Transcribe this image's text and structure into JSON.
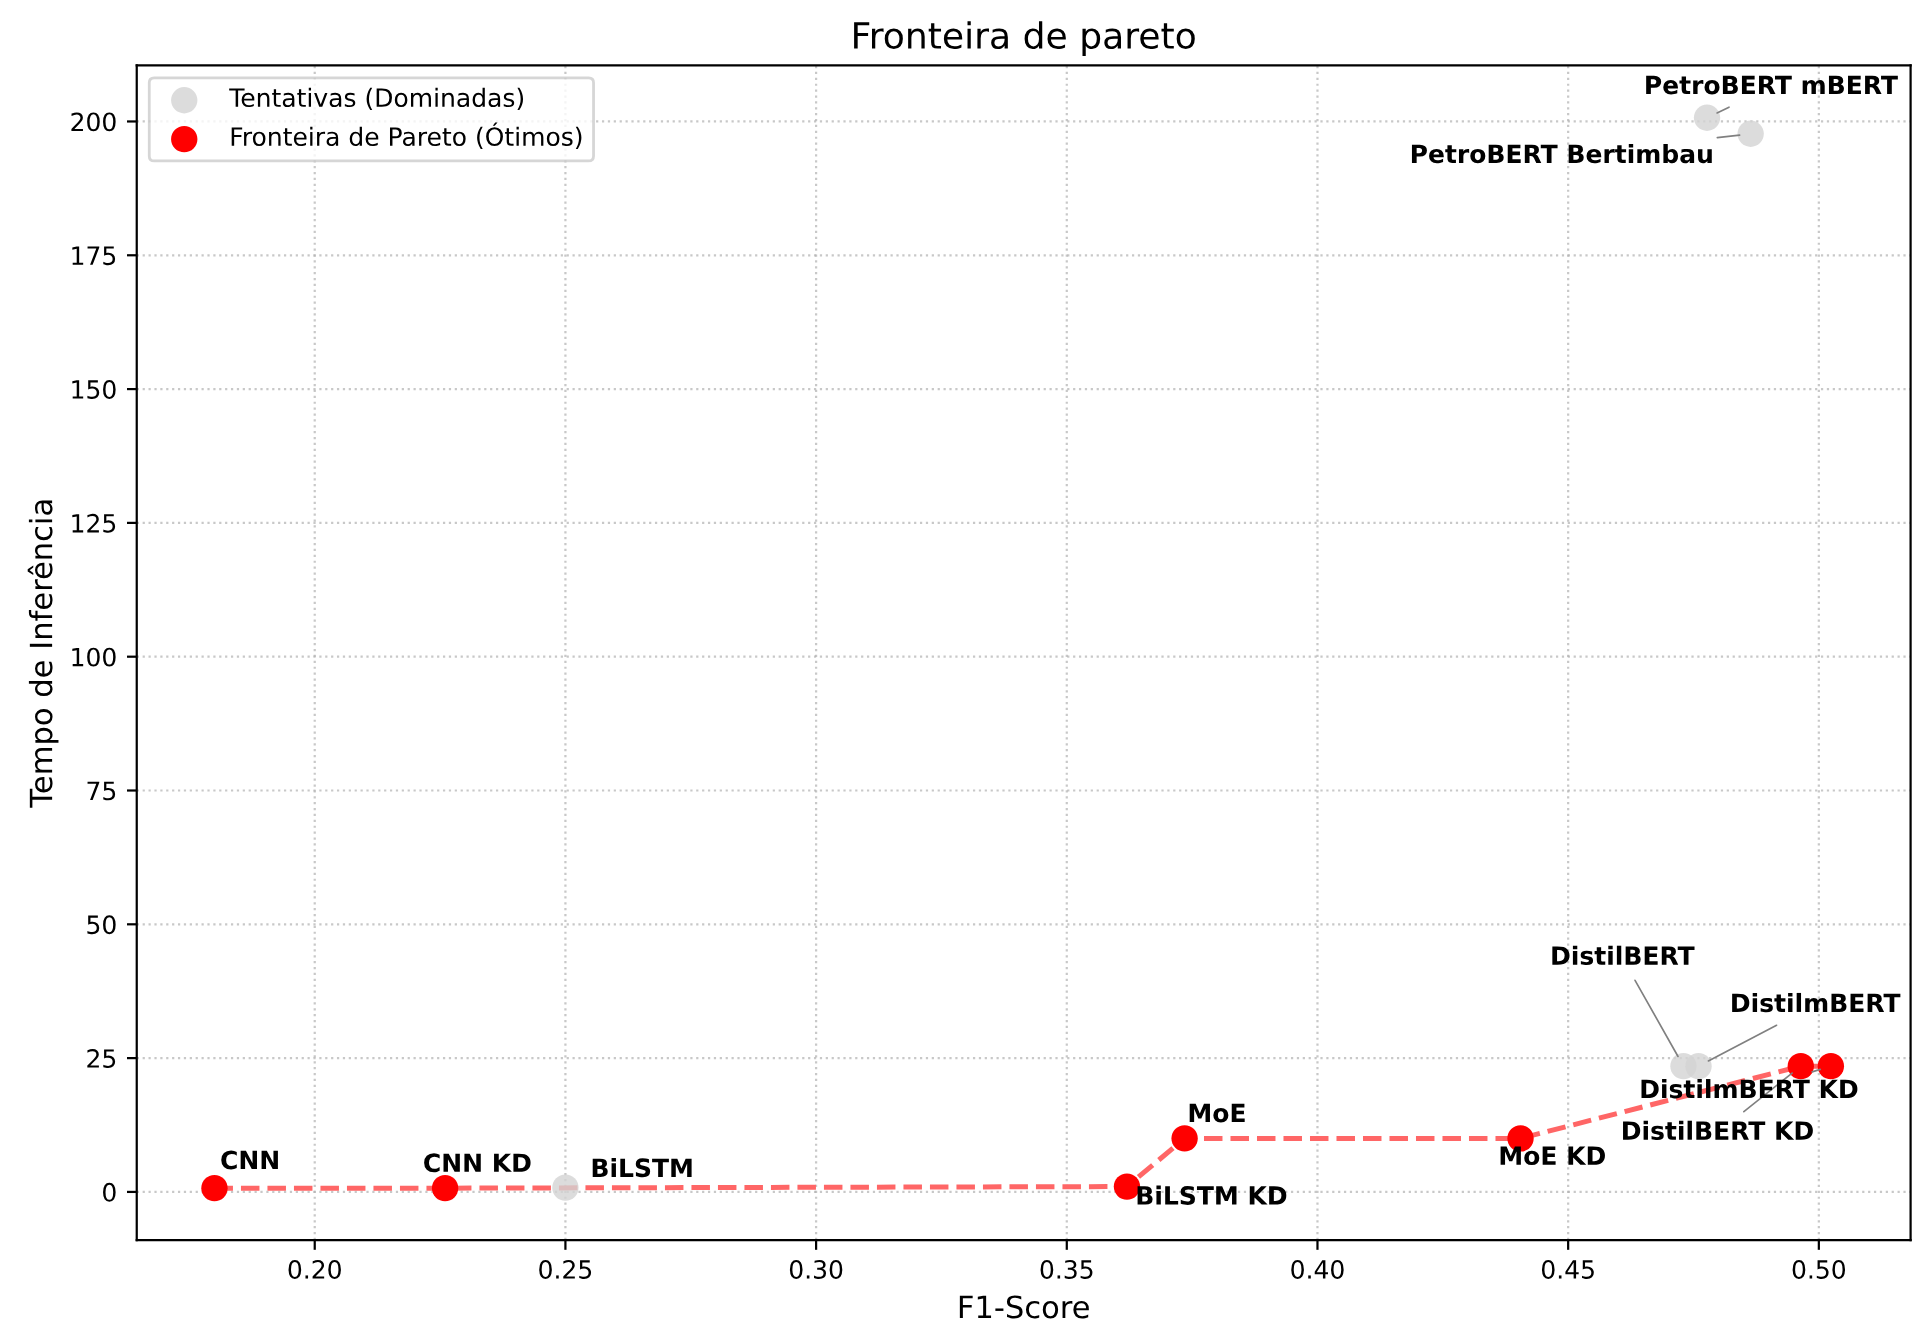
{
  "chart_data": {
    "type": "scatter",
    "title": "Fronteira de pareto",
    "xlabel": "F1-Score",
    "ylabel": "Tempo de Inferência",
    "xlim": [
      0.1645,
      0.5183
    ],
    "ylim": [
      -9,
      210.5
    ],
    "xticks": [
      {
        "value": 0.2,
        "label": "0.20"
      },
      {
        "value": 0.25,
        "label": "0.25"
      },
      {
        "value": 0.3,
        "label": "0.30"
      },
      {
        "value": 0.35,
        "label": "0.35"
      },
      {
        "value": 0.4,
        "label": "0.40"
      },
      {
        "value": 0.45,
        "label": "0.45"
      },
      {
        "value": 0.5,
        "label": "0.50"
      }
    ],
    "yticks": [
      0,
      25,
      50,
      75,
      100,
      125,
      150,
      175,
      200
    ],
    "grid": true,
    "legend": "top left",
    "series": [
      {
        "name": "Tentativas (Dominadas)",
        "type": "scatter",
        "marker": "circle",
        "color": "#d3d3d3",
        "x": [
          0.25,
          0.473,
          0.476,
          0.4777,
          0.4864
        ],
        "values": [
          0.8,
          23.5,
          23.5,
          200.7,
          197.7
        ]
      },
      {
        "name": "Fronteira de Pareto (Ótimos)",
        "type": "scatter",
        "marker": "circle",
        "color": "#ff0000",
        "x": [
          0.18,
          0.226,
          0.362,
          0.3735,
          0.4405,
          0.4964,
          0.5024
        ],
        "values": [
          0.7,
          0.7,
          1,
          10,
          10,
          23.5,
          23.5
        ]
      },
      {
        "type": "line",
        "color": "#ff6666",
        "line_style": "dashed",
        "x": [
          0.18,
          0.226,
          0.362,
          0.3735,
          0.4405,
          0.4964,
          0.5024
        ],
        "values": [
          0.7,
          0.7,
          1,
          10,
          10,
          23.5,
          23.5
        ]
      }
    ],
    "annotations": [
      {
        "text": "CNN",
        "x": 0.18,
        "y": 0.7
      },
      {
        "text": "CNN KD",
        "x": 0.226,
        "y": 0.7
      },
      {
        "text": "BiLSTM",
        "x": 0.25,
        "y": 0.8
      },
      {
        "text": "BiLSTM KD",
        "x": 0.362,
        "y": 1
      },
      {
        "text": "MoE",
        "x": 0.3735,
        "y": 10
      },
      {
        "text": "MoE KD",
        "x": 0.4405,
        "y": 10
      },
      {
        "text": "DistilBERT KD",
        "x": 0.4964,
        "y": 23.5
      },
      {
        "text": "DistilmBERT KD",
        "x": 0.5024,
        "y": 23.5
      },
      {
        "text": "DistilBERT",
        "x": 0.473,
        "y": 23.5
      },
      {
        "text": "DistilmBERT",
        "x": 0.476,
        "y": 23.5
      },
      {
        "text": "PetroBERT mBERT",
        "x": 0.4777,
        "y": 200.7
      },
      {
        "text": "PetroBERT Bertimbau",
        "x": 0.4864,
        "y": 197.7
      }
    ]
  }
}
